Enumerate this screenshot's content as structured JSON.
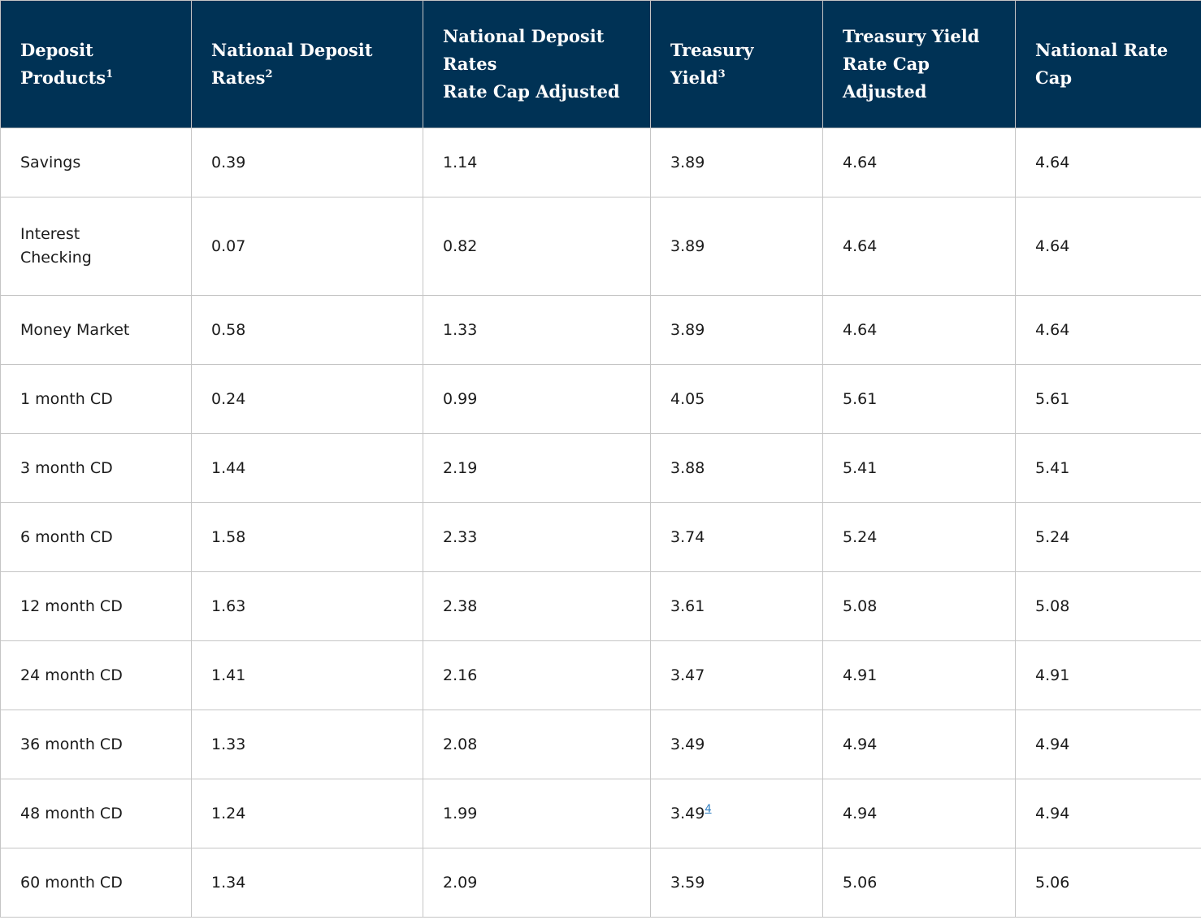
{
  "colors": {
    "header_background": "#003255",
    "header_text": "#fdfdfd",
    "body_text": "#1b1b1b",
    "grid_border": "#c5c5c5",
    "footnote_link": "#2b7bbf",
    "row_background": "#ffffff"
  },
  "chart_data": {
    "type": "table",
    "columns": [
      {
        "label": "Deposit\nProducts",
        "footnote_marker": "1"
      },
      {
        "label": "National Deposit\nRates",
        "footnote_marker": "2"
      },
      {
        "label": "National Deposit\nRates\nRate Cap Adjusted",
        "footnote_marker": ""
      },
      {
        "label": "Treasury\nYield",
        "footnote_marker": "3"
      },
      {
        "label": "Treasury Yield\nRate Cap\nAdjusted",
        "footnote_marker": ""
      },
      {
        "label": "National Rate\nCap",
        "footnote_marker": ""
      }
    ],
    "rows": [
      {
        "deposit_product": "Savings",
        "values": [
          "0.39",
          "1.14",
          "3.89",
          "4.64",
          "4.64"
        ]
      },
      {
        "deposit_product": "Interest Checking",
        "values": [
          "0.07",
          "0.82",
          "3.89",
          "4.64",
          "4.64"
        ]
      },
      {
        "deposit_product": "Money Market",
        "values": [
          "0.58",
          "1.33",
          "3.89",
          "4.64",
          "4.64"
        ]
      },
      {
        "deposit_product": "1 month CD",
        "values": [
          "0.24",
          "0.99",
          "4.05",
          "5.61",
          "5.61"
        ]
      },
      {
        "deposit_product": "3 month CD",
        "values": [
          "1.44",
          "2.19",
          "3.88",
          "5.41",
          "5.41"
        ]
      },
      {
        "deposit_product": "6 month CD",
        "values": [
          "1.58",
          "2.33",
          "3.74",
          "5.24",
          "5.24"
        ]
      },
      {
        "deposit_product": "12 month CD",
        "values": [
          "1.63",
          "2.38",
          "3.61",
          "5.08",
          "5.08"
        ]
      },
      {
        "deposit_product": "24 month CD",
        "values": [
          "1.41",
          "2.16",
          "3.47",
          "4.91",
          "4.91"
        ]
      },
      {
        "deposit_product": "36 month CD",
        "values": [
          "1.33",
          "2.08",
          "3.49",
          "4.94",
          "4.94"
        ]
      },
      {
        "deposit_product": "48 month CD",
        "values": [
          "1.24",
          "1.99",
          "3.49",
          "4.94",
          "4.94"
        ]
      },
      {
        "deposit_product": "60 month CD",
        "values": [
          "1.34",
          "2.09",
          "3.59",
          "5.06",
          "5.06"
        ]
      }
    ],
    "cell_footnote": {
      "row_index": 9,
      "value_index": 2,
      "marker": "4"
    }
  }
}
